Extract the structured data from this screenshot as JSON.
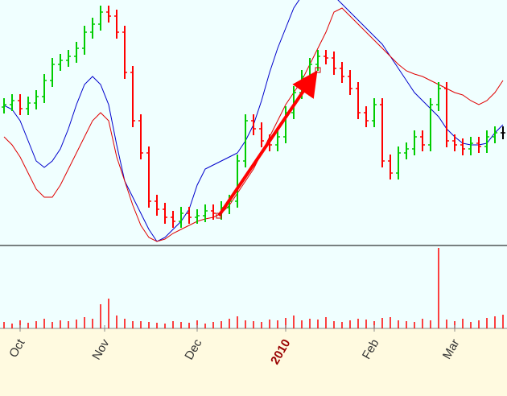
{
  "chart_data": {
    "type": "ohlc",
    "x": [
      0,
      1,
      2,
      3,
      4,
      5,
      6,
      7,
      8,
      9,
      10,
      11,
      12,
      13,
      14,
      15,
      16,
      17,
      18,
      19,
      20,
      21,
      22,
      23,
      24,
      25,
      26,
      27,
      28,
      29,
      30,
      31,
      32,
      33,
      34,
      35,
      36,
      37,
      38,
      39,
      40,
      41,
      42,
      43,
      44,
      45,
      46,
      47,
      48,
      49,
      50,
      51,
      52,
      53,
      54,
      55,
      56,
      57,
      58,
      59,
      60,
      61,
      62
    ],
    "xlim": [
      -0.5,
      62.5
    ],
    "xticks": [
      {
        "value": 2,
        "label": "Oct"
      },
      {
        "value": 12.5,
        "label": "Nov"
      },
      {
        "value": 24,
        "label": "Dec"
      },
      {
        "value": 35,
        "label": "2010"
      },
      {
        "value": 46,
        "label": "Feb"
      },
      {
        "value": 56,
        "label": "Mar"
      }
    ],
    "xtick_colors": [
      "#333333",
      "#333333",
      "#333333",
      "#990000",
      "#333333",
      "#333333"
    ],
    "open": [
      172,
      175,
      180,
      170,
      177,
      185,
      205,
      225,
      230,
      235,
      245,
      265,
      275,
      290,
      285,
      265,
      215,
      155,
      115,
      55,
      45,
      35,
      30,
      40,
      35,
      37,
      43,
      40,
      47,
      55,
      105,
      155,
      145,
      130,
      125,
      135,
      165,
      190,
      210,
      225,
      235,
      233,
      220,
      210,
      195,
      165,
      155,
      175,
      105,
      90,
      115,
      120,
      135,
      125,
      175,
      195,
      130,
      125,
      120,
      127,
      123,
      135,
      140
    ],
    "high": [
      183,
      188,
      188,
      185,
      193,
      213,
      233,
      238,
      243,
      253,
      273,
      283,
      298,
      298,
      293,
      273,
      223,
      163,
      123,
      63,
      53,
      43,
      48,
      48,
      45,
      51,
      51,
      55,
      63,
      113,
      163,
      163,
      153,
      138,
      143,
      173,
      198,
      218,
      233,
      243,
      243,
      241,
      228,
      218,
      203,
      173,
      183,
      183,
      113,
      123,
      128,
      143,
      143,
      183,
      203,
      203,
      138,
      133,
      135,
      135,
      143,
      148,
      148
    ],
    "low": [
      164,
      167,
      162,
      162,
      169,
      177,
      197,
      217,
      222,
      227,
      237,
      257,
      267,
      277,
      257,
      207,
      147,
      107,
      47,
      37,
      27,
      22,
      22,
      27,
      27,
      29,
      32,
      32,
      39,
      47,
      97,
      137,
      122,
      117,
      117,
      127,
      157,
      182,
      202,
      217,
      225,
      212,
      202,
      187,
      157,
      147,
      147,
      97,
      82,
      82,
      107,
      112,
      117,
      117,
      167,
      122,
      117,
      112,
      112,
      115,
      115,
      127,
      132
    ],
    "close": [
      175,
      180,
      170,
      177,
      185,
      205,
      225,
      230,
      235,
      245,
      265,
      275,
      290,
      285,
      265,
      215,
      155,
      115,
      55,
      45,
      35,
      30,
      40,
      35,
      37,
      43,
      40,
      47,
      55,
      105,
      155,
      145,
      130,
      125,
      135,
      165,
      190,
      210,
      225,
      235,
      233,
      220,
      210,
      195,
      165,
      155,
      175,
      105,
      90,
      115,
      120,
      135,
      125,
      175,
      195,
      130,
      125,
      120,
      127,
      123,
      135,
      140,
      140
    ],
    "up_color": "#00cc00",
    "down_color": "#ff0000",
    "ylim": [
      0,
      305
    ],
    "moving_averages": [
      {
        "color": "#0000cc",
        "values": [
          174,
          169,
          155,
          130,
          105,
          97,
          105,
          120,
          145,
          175,
          200,
          210,
          200,
          175,
          125,
          80,
          60,
          40,
          20,
          5,
          10,
          20,
          30,
          45,
          75,
          95,
          100,
          105,
          110,
          115,
          130,
          150,
          180,
          215,
          245,
          270,
          295,
          310,
          320,
          323,
          320,
          310,
          300,
          290,
          280,
          270,
          260,
          250,
          235,
          220,
          205,
          190,
          180,
          170,
          160,
          145,
          135,
          127,
          125,
          125,
          127,
          140,
          150
        ]
      },
      {
        "color": "#e00000",
        "values": [
          135,
          125,
          110,
          90,
          70,
          60,
          60,
          75,
          95,
          115,
          135,
          155,
          165,
          155,
          110,
          80,
          50,
          25,
          10,
          5,
          8,
          15,
          20,
          25,
          30,
          33,
          35,
          40,
          50,
          65,
          80,
          95,
          115,
          135,
          155,
          175,
          190,
          205,
          225,
          245,
          265,
          290,
          295,
          285,
          275,
          265,
          255,
          245,
          235,
          225,
          217,
          213,
          210,
          205,
          200,
          195,
          190,
          187,
          180,
          175,
          180,
          190,
          205
        ]
      }
    ],
    "volume": [
      8,
      6,
      10,
      7,
      9,
      12,
      8,
      10,
      9,
      11,
      14,
      12,
      30,
      37,
      16,
      12,
      9,
      9,
      8,
      7,
      6,
      9,
      8,
      7,
      10,
      6,
      8,
      9,
      12,
      15,
      10,
      9,
      8,
      11,
      10,
      13,
      16,
      10,
      12,
      11,
      14,
      9,
      8,
      10,
      12,
      11,
      9,
      13,
      14,
      10,
      9,
      8,
      12,
      10,
      100,
      11,
      9,
      12,
      8,
      10,
      13,
      15,
      17
    ],
    "volume_color": "#ff0000",
    "vlim": [
      0,
      103
    ]
  }
}
